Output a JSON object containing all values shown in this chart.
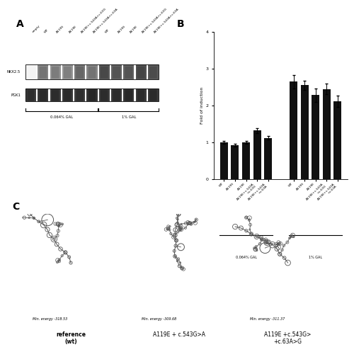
{
  "panel_B": {
    "values_group1": [
      1.0,
      0.93,
      1.0,
      1.32,
      1.12
    ],
    "values_group2": [
      2.65,
      2.55,
      2.28,
      2.45,
      2.12
    ],
    "errors_group1": [
      0.04,
      0.04,
      0.04,
      0.07,
      0.05
    ],
    "errors_group2": [
      0.18,
      0.12,
      0.18,
      0.15,
      0.15
    ],
    "ylabel": "Fold of induction",
    "ylim": [
      0,
      4
    ],
    "yticks": [
      0,
      1,
      2,
      3,
      4
    ],
    "group_labels": [
      "0.064% GAL",
      "1% GAL"
    ],
    "bar_color": "#111111",
    "bar_width": 0.7
  },
  "panel_C": {
    "structures": [
      {
        "title": "reference\n(wt)",
        "energy_label": "Min. energy -318.53",
        "bold": true
      },
      {
        "title": "A119E + c.543G>A",
        "energy_label": "Min. energy -309.68",
        "bold": false
      },
      {
        "title": "A119E +c.543G>\n+c.63A>G",
        "energy_label": "Min. energy -311.37",
        "bold": false
      }
    ]
  },
  "lane_labels": [
    "empty",
    "WT",
    "A119S",
    "A119E",
    "A119E+c.543A+c.63G",
    "A119E+c.543A+c.63A",
    "WT",
    "A119S",
    "A119E",
    "A119E+c.543A+c.63G",
    "A119E+c.543A+c.63A"
  ],
  "nkx_intensities": [
    0.05,
    0.55,
    0.5,
    0.48,
    0.62,
    0.55,
    0.78,
    0.72,
    0.72,
    0.8,
    0.76
  ],
  "pgk_intensities": [
    0.82,
    0.85,
    0.83,
    0.84,
    0.82,
    0.86,
    0.83,
    0.84,
    0.85,
    0.83,
    0.84
  ],
  "figure_bg": "#ffffff",
  "tick_labels": [
    "WT",
    "A119S",
    "A119E",
    "A119E+c.543A\n+c.63G",
    "A119E+c.543A\n+c.63A",
    "WT",
    "A119S",
    "A119E",
    "A119E+c.543A\n+c.63G",
    "A119E+c.543A\n+c.63A"
  ]
}
